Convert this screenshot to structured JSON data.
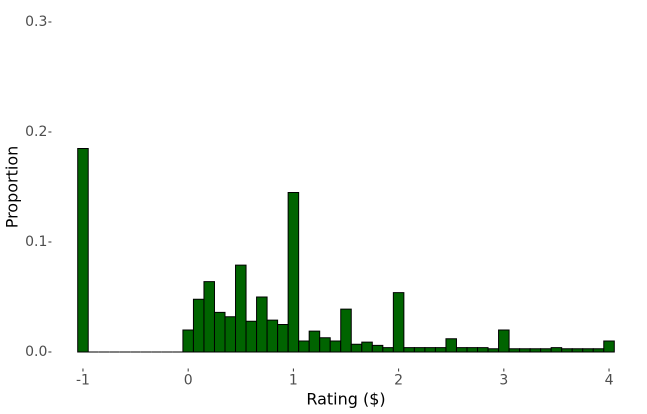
{
  "chart_data": {
    "type": "histogram",
    "x_label": "Rating ($)",
    "y_label": "Proportion",
    "bins": [
      -1.05,
      -0.95,
      -0.85,
      -0.75,
      -0.65,
      -0.55,
      -0.45,
      -0.35,
      -0.25,
      -0.15,
      -0.05,
      0.05,
      0.15,
      0.25,
      0.35,
      0.45,
      0.55,
      0.65,
      0.75,
      0.85,
      0.95,
      1.05,
      1.15,
      1.25,
      1.35,
      1.45,
      1.55,
      1.65,
      1.75,
      1.85,
      1.95,
      2.05,
      2.15,
      2.25,
      2.35,
      2.45,
      2.55,
      2.65,
      2.75,
      2.85,
      2.95,
      3.05,
      3.15,
      3.25,
      3.35,
      3.45,
      3.55,
      3.65,
      3.75,
      3.85,
      3.95,
      4.05
    ],
    "values": [
      0.185,
      0,
      0,
      0,
      0,
      0,
      0,
      0,
      0,
      0,
      0.02,
      0.048,
      0.064,
      0.036,
      0.032,
      0.079,
      0.028,
      0.05,
      0.029,
      0.025,
      0.145,
      0.01,
      0.019,
      0.013,
      0.01,
      0.039,
      0.007,
      0.009,
      0.006,
      0.004,
      0.054,
      0.004,
      0.004,
      0.004,
      0.004,
      0.012,
      0.004,
      0.004,
      0.004,
      0.003,
      0.02,
      0.003,
      0.003,
      0.003,
      0.003,
      0.004,
      0.003,
      0.003,
      0.003,
      0.003,
      0.01
    ],
    "color": "#006400",
    "edgecolor": "#000000",
    "xlim": [
      -1.3,
      4.3
    ],
    "xticks": [
      -1,
      0,
      1,
      2,
      3,
      4
    ],
    "ylim": [
      -0.015,
      0.315
    ],
    "yticks": [
      {
        "value": 0,
        "label": "0.0"
      },
      0.1,
      0.2,
      0.3
    ],
    "grid": false
  }
}
